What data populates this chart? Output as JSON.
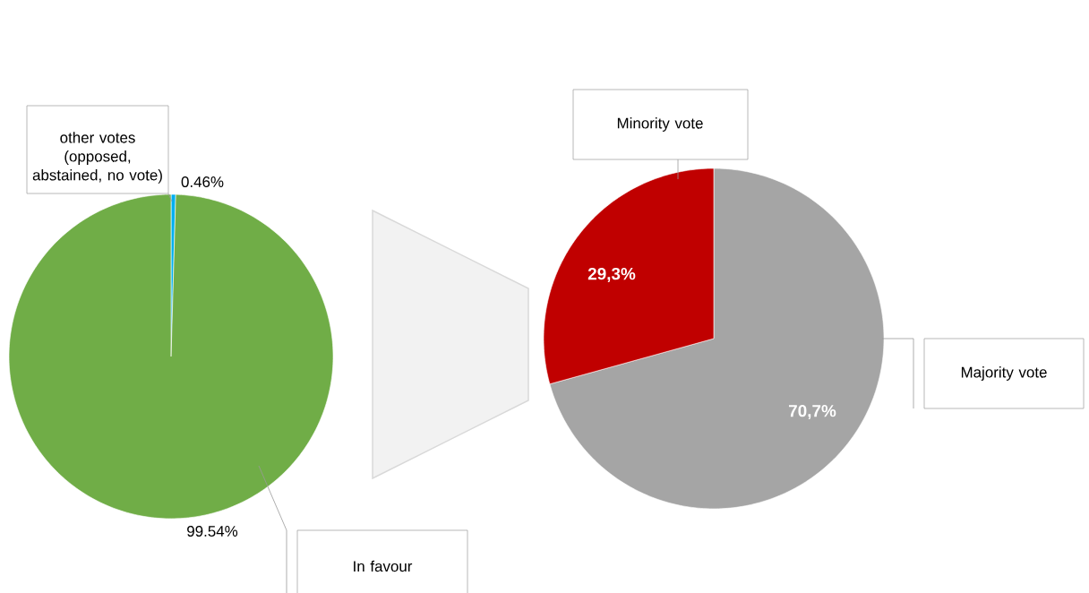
{
  "chart_data": [
    {
      "type": "pie",
      "categories": [
        "other votes (opposed, abstained, no vote)",
        "In favour"
      ],
      "values": [
        0.46,
        99.54
      ],
      "colors": [
        "#00b0f0",
        "#70ad47"
      ],
      "value_labels": [
        "0.46%",
        "99.54%"
      ]
    },
    {
      "type": "pie",
      "categories": [
        "Majority vote",
        "Minority vote"
      ],
      "values": [
        70.7,
        29.3
      ],
      "colors": [
        "#a5a5a5",
        "#c00000"
      ],
      "value_labels": [
        "70,7%",
        "29,3%"
      ]
    }
  ]
}
